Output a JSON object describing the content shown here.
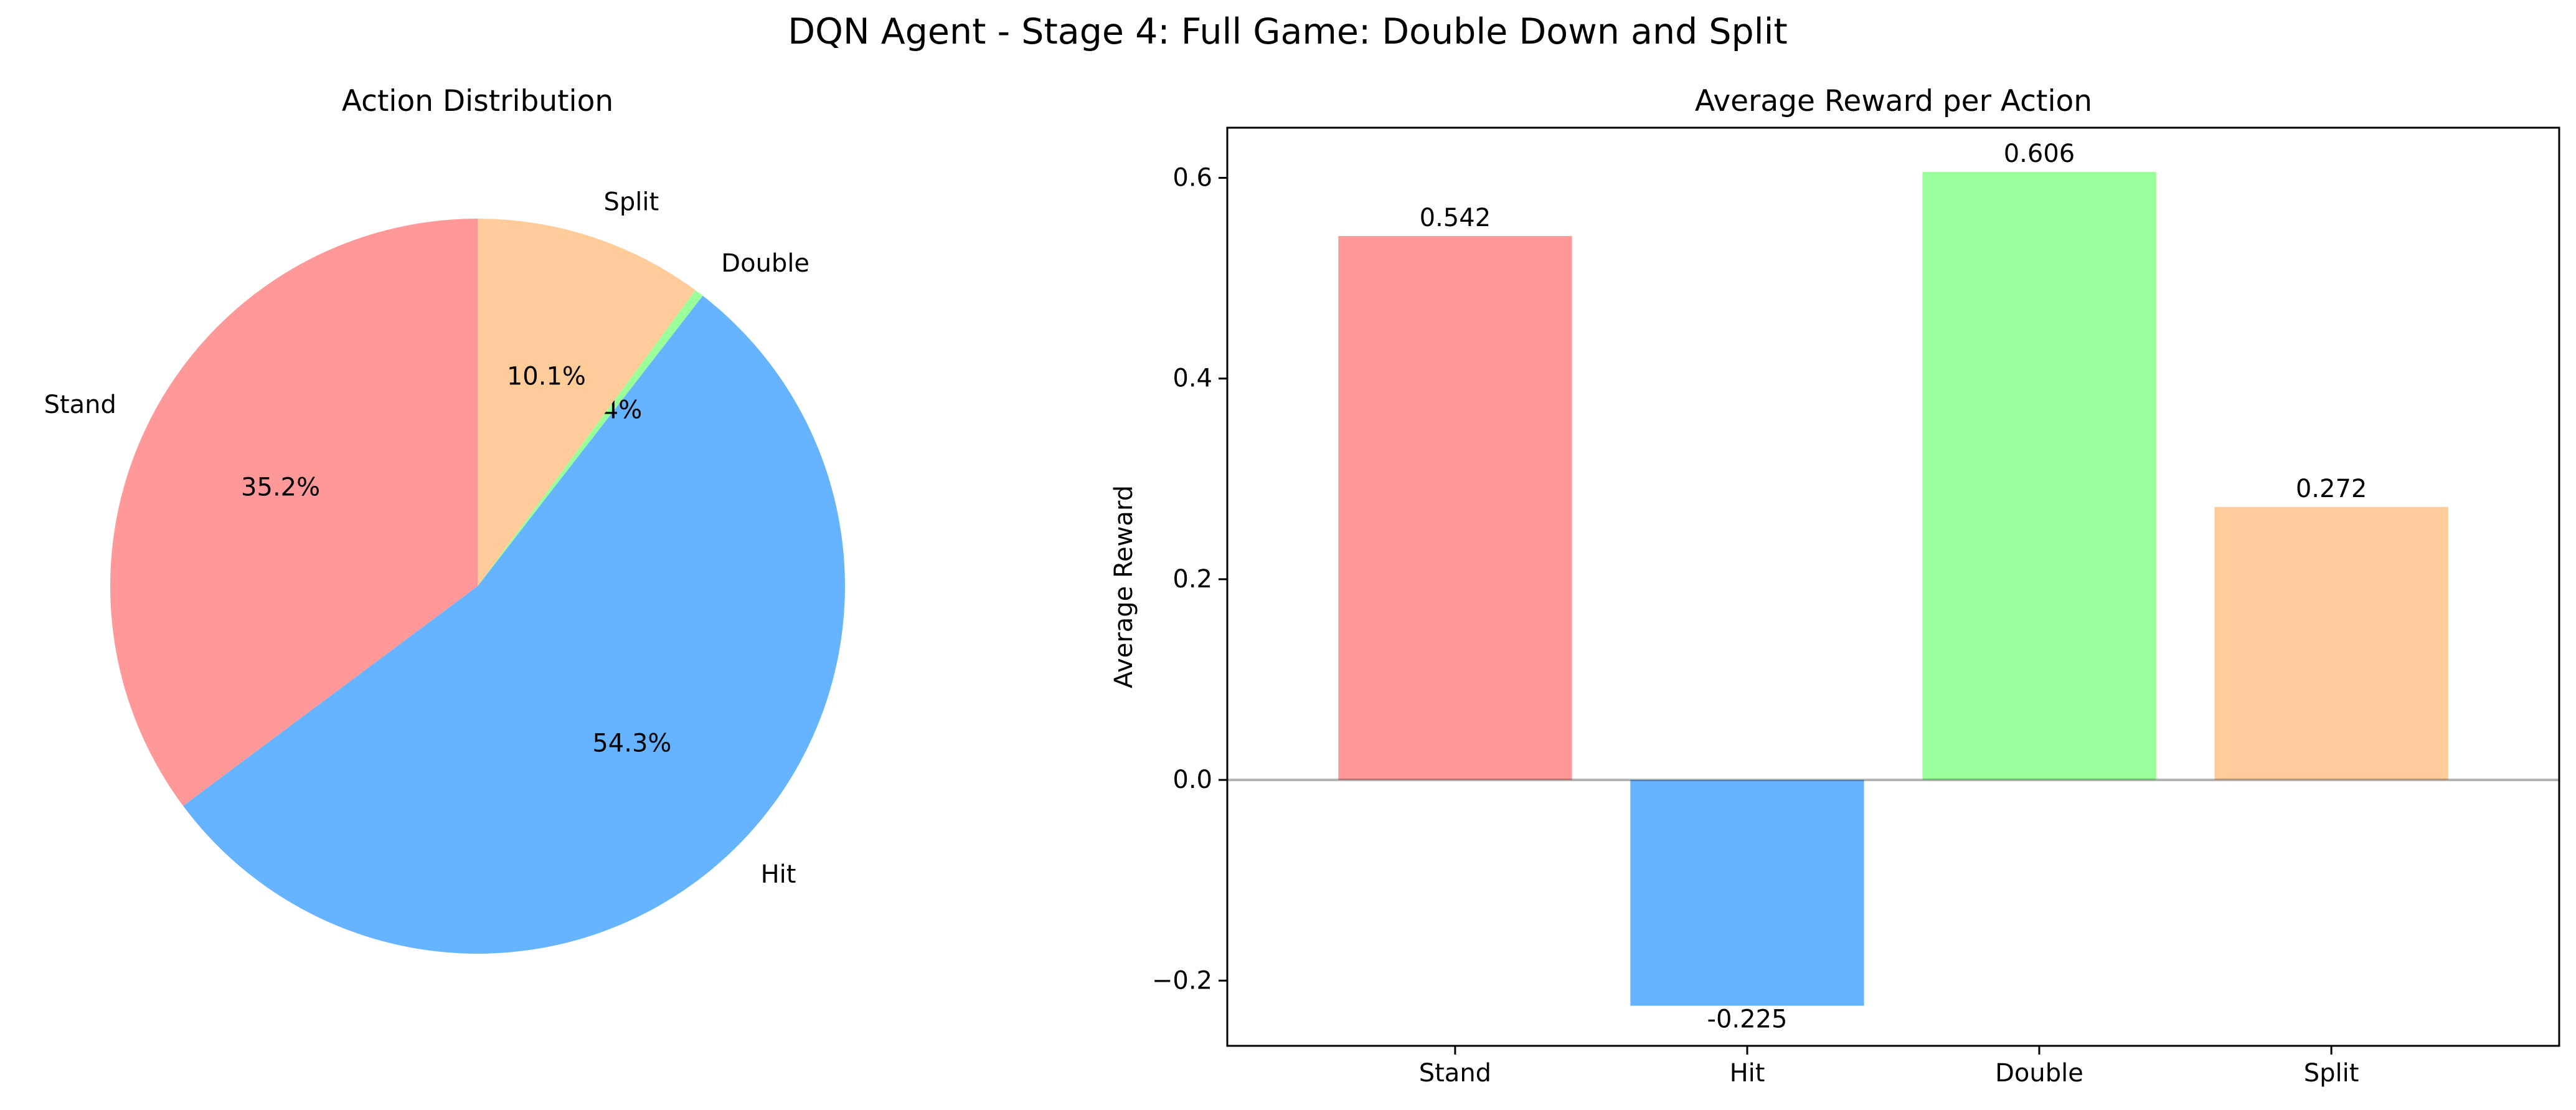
{
  "figure": {
    "title": "DQN Agent - Stage 4: Full Game: Double Down and Split"
  },
  "chart_data": [
    {
      "type": "pie",
      "title": "Action Distribution",
      "start_angle_deg": 90,
      "direction": "counterclockwise",
      "slices": [
        {
          "label": "Stand",
          "value": 35.2,
          "pct_label": "35.2%",
          "color": "#ff9999"
        },
        {
          "label": "Hit",
          "value": 54.3,
          "pct_label": "54.3%",
          "color": "#66b3ff"
        },
        {
          "label": "Double",
          "value": 0.4,
          "pct_label": "0.4%",
          "color": "#99ff99"
        },
        {
          "label": "Split",
          "value": 10.1,
          "pct_label": "10.1%",
          "color": "#ffcc99"
        }
      ]
    },
    {
      "type": "bar",
      "title": "Average Reward per Action",
      "ylabel": "Average Reward",
      "xlabel": "",
      "ylim": [
        -0.265,
        0.65
      ],
      "yticks": [
        -0.2,
        0.0,
        0.2,
        0.4,
        0.6
      ],
      "ytick_labels": [
        "−0.2",
        "0.0",
        "0.2",
        "0.4",
        "0.6"
      ],
      "zero_line": true,
      "categories": [
        "Stand",
        "Hit",
        "Double",
        "Split"
      ],
      "values": [
        0.542,
        -0.225,
        0.606,
        0.272
      ],
      "value_labels": [
        "0.542",
        "-0.225",
        "0.606",
        "0.272"
      ],
      "colors": [
        "#ff9999",
        "#66b3ff",
        "#99ff99",
        "#ffcc99"
      ]
    }
  ]
}
